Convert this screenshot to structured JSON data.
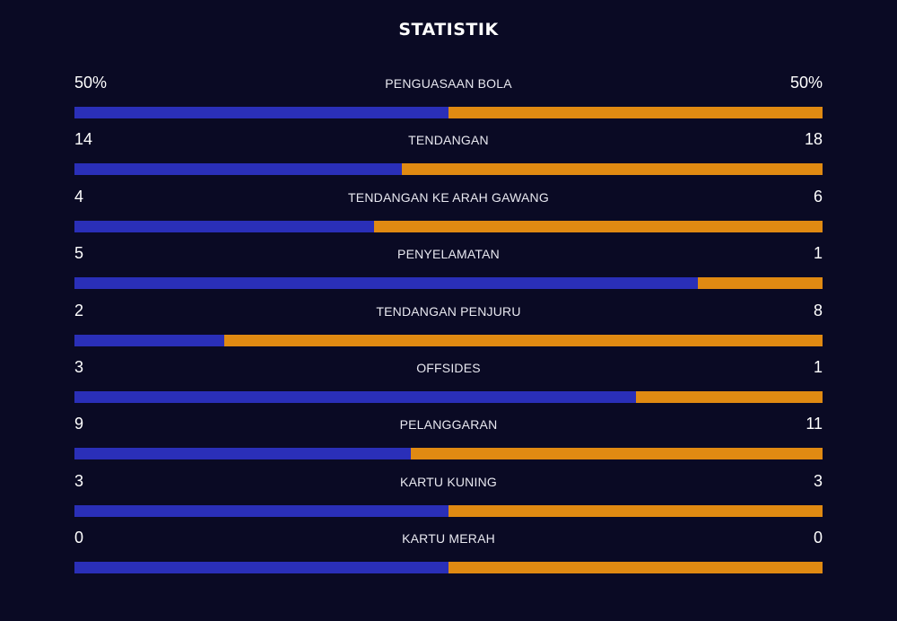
{
  "title": "STATISTIK",
  "colors": {
    "background": "#0a0a24",
    "home": "#2a2fb8",
    "away": "#e08a12"
  },
  "chart_data": {
    "type": "bar",
    "orientation": "horizontal-stacked-comparison",
    "title": "STATISTIK",
    "series": [
      {
        "values": [
          50,
          14,
          4,
          5,
          2,
          3,
          9,
          3,
          0
        ]
      },
      {
        "values": [
          50,
          18,
          6,
          1,
          8,
          1,
          11,
          3,
          0
        ]
      }
    ],
    "categories": [
      "PENGUASAAN BOLA",
      "TENDANGAN",
      "TENDANGAN KE ARAH GAWANG",
      "PENYELAMATAN",
      "TENDANGAN PENJURU",
      "OFFSIDES",
      "PELANGGARAN",
      "KARTU KUNING",
      "KARTU MERAH"
    ],
    "stats": [
      {
        "label": "PENGUASAAN BOLA",
        "home": "50%",
        "away": "50%",
        "home_value": 50,
        "away_value": 50
      },
      {
        "label": "TENDANGAN",
        "home": "14",
        "away": "18",
        "home_value": 14,
        "away_value": 18
      },
      {
        "label": "TENDANGAN KE ARAH GAWANG",
        "home": "4",
        "away": "6",
        "home_value": 4,
        "away_value": 6
      },
      {
        "label": "PENYELAMATAN",
        "home": "5",
        "away": "1",
        "home_value": 5,
        "away_value": 1
      },
      {
        "label": "TENDANGAN PENJURU",
        "home": "2",
        "away": "8",
        "home_value": 2,
        "away_value": 8
      },
      {
        "label": "OFFSIDES",
        "home": "3",
        "away": "1",
        "home_value": 3,
        "away_value": 1
      },
      {
        "label": "PELANGGARAN",
        "home": "9",
        "away": "11",
        "home_value": 9,
        "away_value": 11
      },
      {
        "label": "KARTU KUNING",
        "home": "3",
        "away": "3",
        "home_value": 3,
        "away_value": 3
      },
      {
        "label": "KARTU MERAH",
        "home": "0",
        "away": "0",
        "home_value": 0,
        "away_value": 0
      }
    ]
  }
}
